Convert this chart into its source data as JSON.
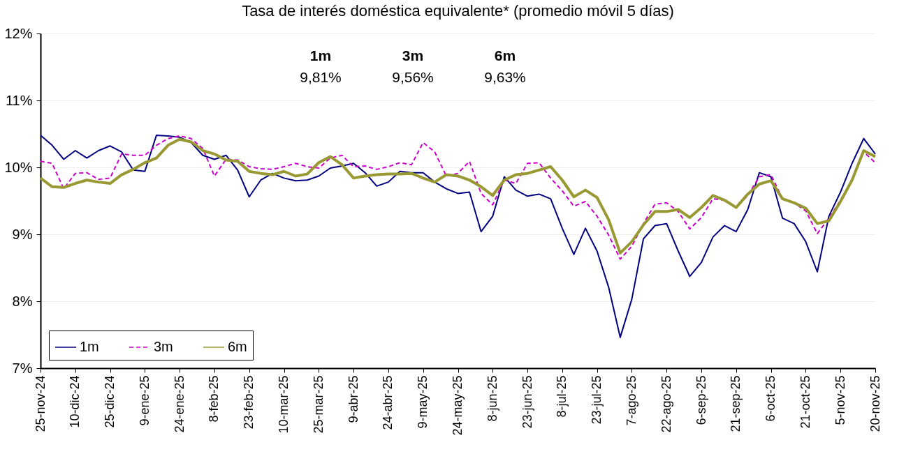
{
  "chart_data": {
    "type": "line",
    "title": "Tasa de interés doméstica equivalente* (promedio móvil 5 días)",
    "x": [
      "2024-11-25",
      "2024-11-30",
      "2024-12-05",
      "2024-12-10",
      "2024-12-15",
      "2024-12-20",
      "2024-12-25",
      "2024-12-30",
      "2025-01-04",
      "2025-01-09",
      "2025-01-14",
      "2025-01-19",
      "2025-01-24",
      "2025-01-29",
      "2025-02-03",
      "2025-02-08",
      "2025-02-13",
      "2025-02-18",
      "2025-02-23",
      "2025-02-28",
      "2025-03-05",
      "2025-03-10",
      "2025-03-15",
      "2025-03-20",
      "2025-03-25",
      "2025-03-30",
      "2025-04-04",
      "2025-04-09",
      "2025-04-14",
      "2025-04-19",
      "2025-04-24",
      "2025-04-29",
      "2025-05-04",
      "2025-05-09",
      "2025-05-14",
      "2025-05-19",
      "2025-05-24",
      "2025-05-29",
      "2025-06-03",
      "2025-06-08",
      "2025-06-13",
      "2025-06-18",
      "2025-06-23",
      "2025-06-28",
      "2025-07-03",
      "2025-07-08",
      "2025-07-13",
      "2025-07-18",
      "2025-07-23",
      "2025-07-28",
      "2025-08-02",
      "2025-08-07",
      "2025-08-12",
      "2025-08-17",
      "2025-08-22",
      "2025-08-27",
      "2025-09-01",
      "2025-09-06",
      "2025-09-11",
      "2025-09-16",
      "2025-09-21",
      "2025-09-26",
      "2025-10-01",
      "2025-10-06",
      "2025-10-11",
      "2025-10-16",
      "2025-10-21",
      "2025-10-26",
      "2025-10-31",
      "2025-11-05",
      "2025-11-10",
      "2025-11-15",
      "2025-11-20"
    ],
    "series": [
      {
        "name": "1m",
        "color": "#000080",
        "line_style": "solid",
        "values": [
          10.48,
          10.33,
          10.12,
          10.25,
          10.14,
          10.25,
          10.32,
          10.23,
          9.96,
          9.94,
          10.48,
          10.47,
          10.45,
          10.37,
          10.18,
          10.12,
          10.18,
          9.96,
          9.56,
          9.81,
          9.91,
          9.84,
          9.8,
          9.81,
          9.87,
          9.99,
          10.02,
          10.06,
          9.92,
          9.72,
          9.78,
          9.94,
          9.92,
          9.92,
          9.78,
          9.68,
          9.61,
          9.63,
          9.04,
          9.27,
          9.86,
          9.66,
          9.57,
          9.6,
          9.53,
          9.09,
          8.7,
          9.09,
          8.75,
          8.21,
          7.46,
          8.03,
          8.93,
          9.13,
          9.16,
          8.75,
          8.37,
          8.58,
          8.96,
          9.13,
          9.04,
          9.37,
          9.92,
          9.86,
          9.24,
          9.16,
          8.89,
          8.44,
          9.27,
          9.63,
          10.06,
          10.43,
          10.2
        ]
      },
      {
        "name": "3m",
        "color": "#cc00cc",
        "line_style": "dashed",
        "values": [
          10.09,
          10.06,
          9.68,
          9.91,
          9.92,
          9.82,
          9.84,
          10.2,
          10.18,
          10.18,
          10.33,
          10.43,
          10.47,
          10.43,
          10.28,
          9.87,
          10.12,
          10.11,
          10.01,
          9.98,
          9.97,
          10.01,
          10.06,
          10.01,
          9.99,
          10.14,
          10.18,
          10.01,
          10.02,
          9.97,
          10.01,
          10.07,
          10.04,
          10.37,
          10.23,
          9.87,
          9.91,
          10.09,
          9.61,
          9.44,
          9.81,
          9.76,
          10.06,
          10.07,
          9.84,
          9.65,
          9.42,
          9.49,
          9.27,
          8.99,
          8.63,
          8.82,
          9.16,
          9.45,
          9.47,
          9.34,
          9.08,
          9.25,
          9.53,
          9.51,
          9.4,
          9.58,
          9.86,
          9.89,
          9.53,
          9.47,
          9.35,
          9.01,
          9.24,
          9.51,
          9.81,
          10.23,
          10.07
        ]
      },
      {
        "name": "6m",
        "color": "#999933",
        "line_style": "solid",
        "values": [
          9.84,
          9.71,
          9.7,
          9.76,
          9.81,
          9.78,
          9.76,
          9.89,
          9.97,
          10.07,
          10.14,
          10.33,
          10.42,
          10.38,
          10.25,
          10.2,
          10.11,
          10.09,
          9.94,
          9.91,
          9.89,
          9.94,
          9.87,
          9.9,
          10.07,
          10.16,
          10.04,
          9.84,
          9.87,
          9.89,
          9.9,
          9.9,
          9.91,
          9.84,
          9.78,
          9.89,
          9.87,
          9.81,
          9.71,
          9.58,
          9.81,
          9.89,
          9.91,
          9.96,
          10.01,
          9.81,
          9.56,
          9.66,
          9.55,
          9.22,
          8.72,
          8.89,
          9.14,
          9.34,
          9.34,
          9.37,
          9.25,
          9.4,
          9.58,
          9.51,
          9.4,
          9.6,
          9.75,
          9.8,
          9.53,
          9.47,
          9.39,
          9.16,
          9.2,
          9.49,
          9.81,
          10.25,
          10.16
        ]
      }
    ],
    "xlim": [
      "2024-11-25",
      "2025-11-20"
    ],
    "xticks": [
      {
        "value": "2024-11-25",
        "label": "25-nov-24"
      },
      {
        "value": "2024-12-10",
        "label": "10-dic-24"
      },
      {
        "value": "2024-12-25",
        "label": "25-dic-24"
      },
      {
        "value": "2025-01-09",
        "label": "9-ene-25"
      },
      {
        "value": "2025-01-24",
        "label": "24-ene-25"
      },
      {
        "value": "2025-02-08",
        "label": "8-feb-25"
      },
      {
        "value": "2025-02-23",
        "label": "23-feb-25"
      },
      {
        "value": "2025-03-10",
        "label": "10-mar-25"
      },
      {
        "value": "2025-03-25",
        "label": "25-mar-25"
      },
      {
        "value": "2025-04-09",
        "label": "9-abr-25"
      },
      {
        "value": "2025-04-24",
        "label": "24-abr-25"
      },
      {
        "value": "2025-05-09",
        "label": "9-may-25"
      },
      {
        "value": "2025-05-24",
        "label": "24-may-25"
      },
      {
        "value": "2025-06-08",
        "label": "8-jun-25"
      },
      {
        "value": "2025-06-23",
        "label": "23-jun-25"
      },
      {
        "value": "2025-07-08",
        "label": "8-jul-25"
      },
      {
        "value": "2025-07-23",
        "label": "23-jul-25"
      },
      {
        "value": "2025-08-07",
        "label": "7-ago-25"
      },
      {
        "value": "2025-08-22",
        "label": "22-ago-25"
      },
      {
        "value": "2025-09-06",
        "label": "6-sep-25"
      },
      {
        "value": "2025-09-21",
        "label": "21-sep-25"
      },
      {
        "value": "2025-10-06",
        "label": "6-oct-25"
      },
      {
        "value": "2025-10-21",
        "label": "21-oct-25"
      },
      {
        "value": "2025-11-05",
        "label": "5-nov-25"
      },
      {
        "value": "2025-11-20",
        "label": "20-nov-25"
      }
    ],
    "ylim": [
      7,
      12
    ],
    "yticks": [
      {
        "value": 7,
        "label": "7%"
      },
      {
        "value": 8,
        "label": "8%"
      },
      {
        "value": 9,
        "label": "9%"
      },
      {
        "value": 10,
        "label": "10%"
      },
      {
        "value": 11,
        "label": "11%"
      },
      {
        "value": 12,
        "label": "12%"
      }
    ],
    "grid": "y",
    "legend": "bottom left",
    "marker": "none",
    "annotations": [
      "1m",
      "3m",
      "6m",
      "9,81%",
      "9,56%",
      "9,63%"
    ]
  }
}
